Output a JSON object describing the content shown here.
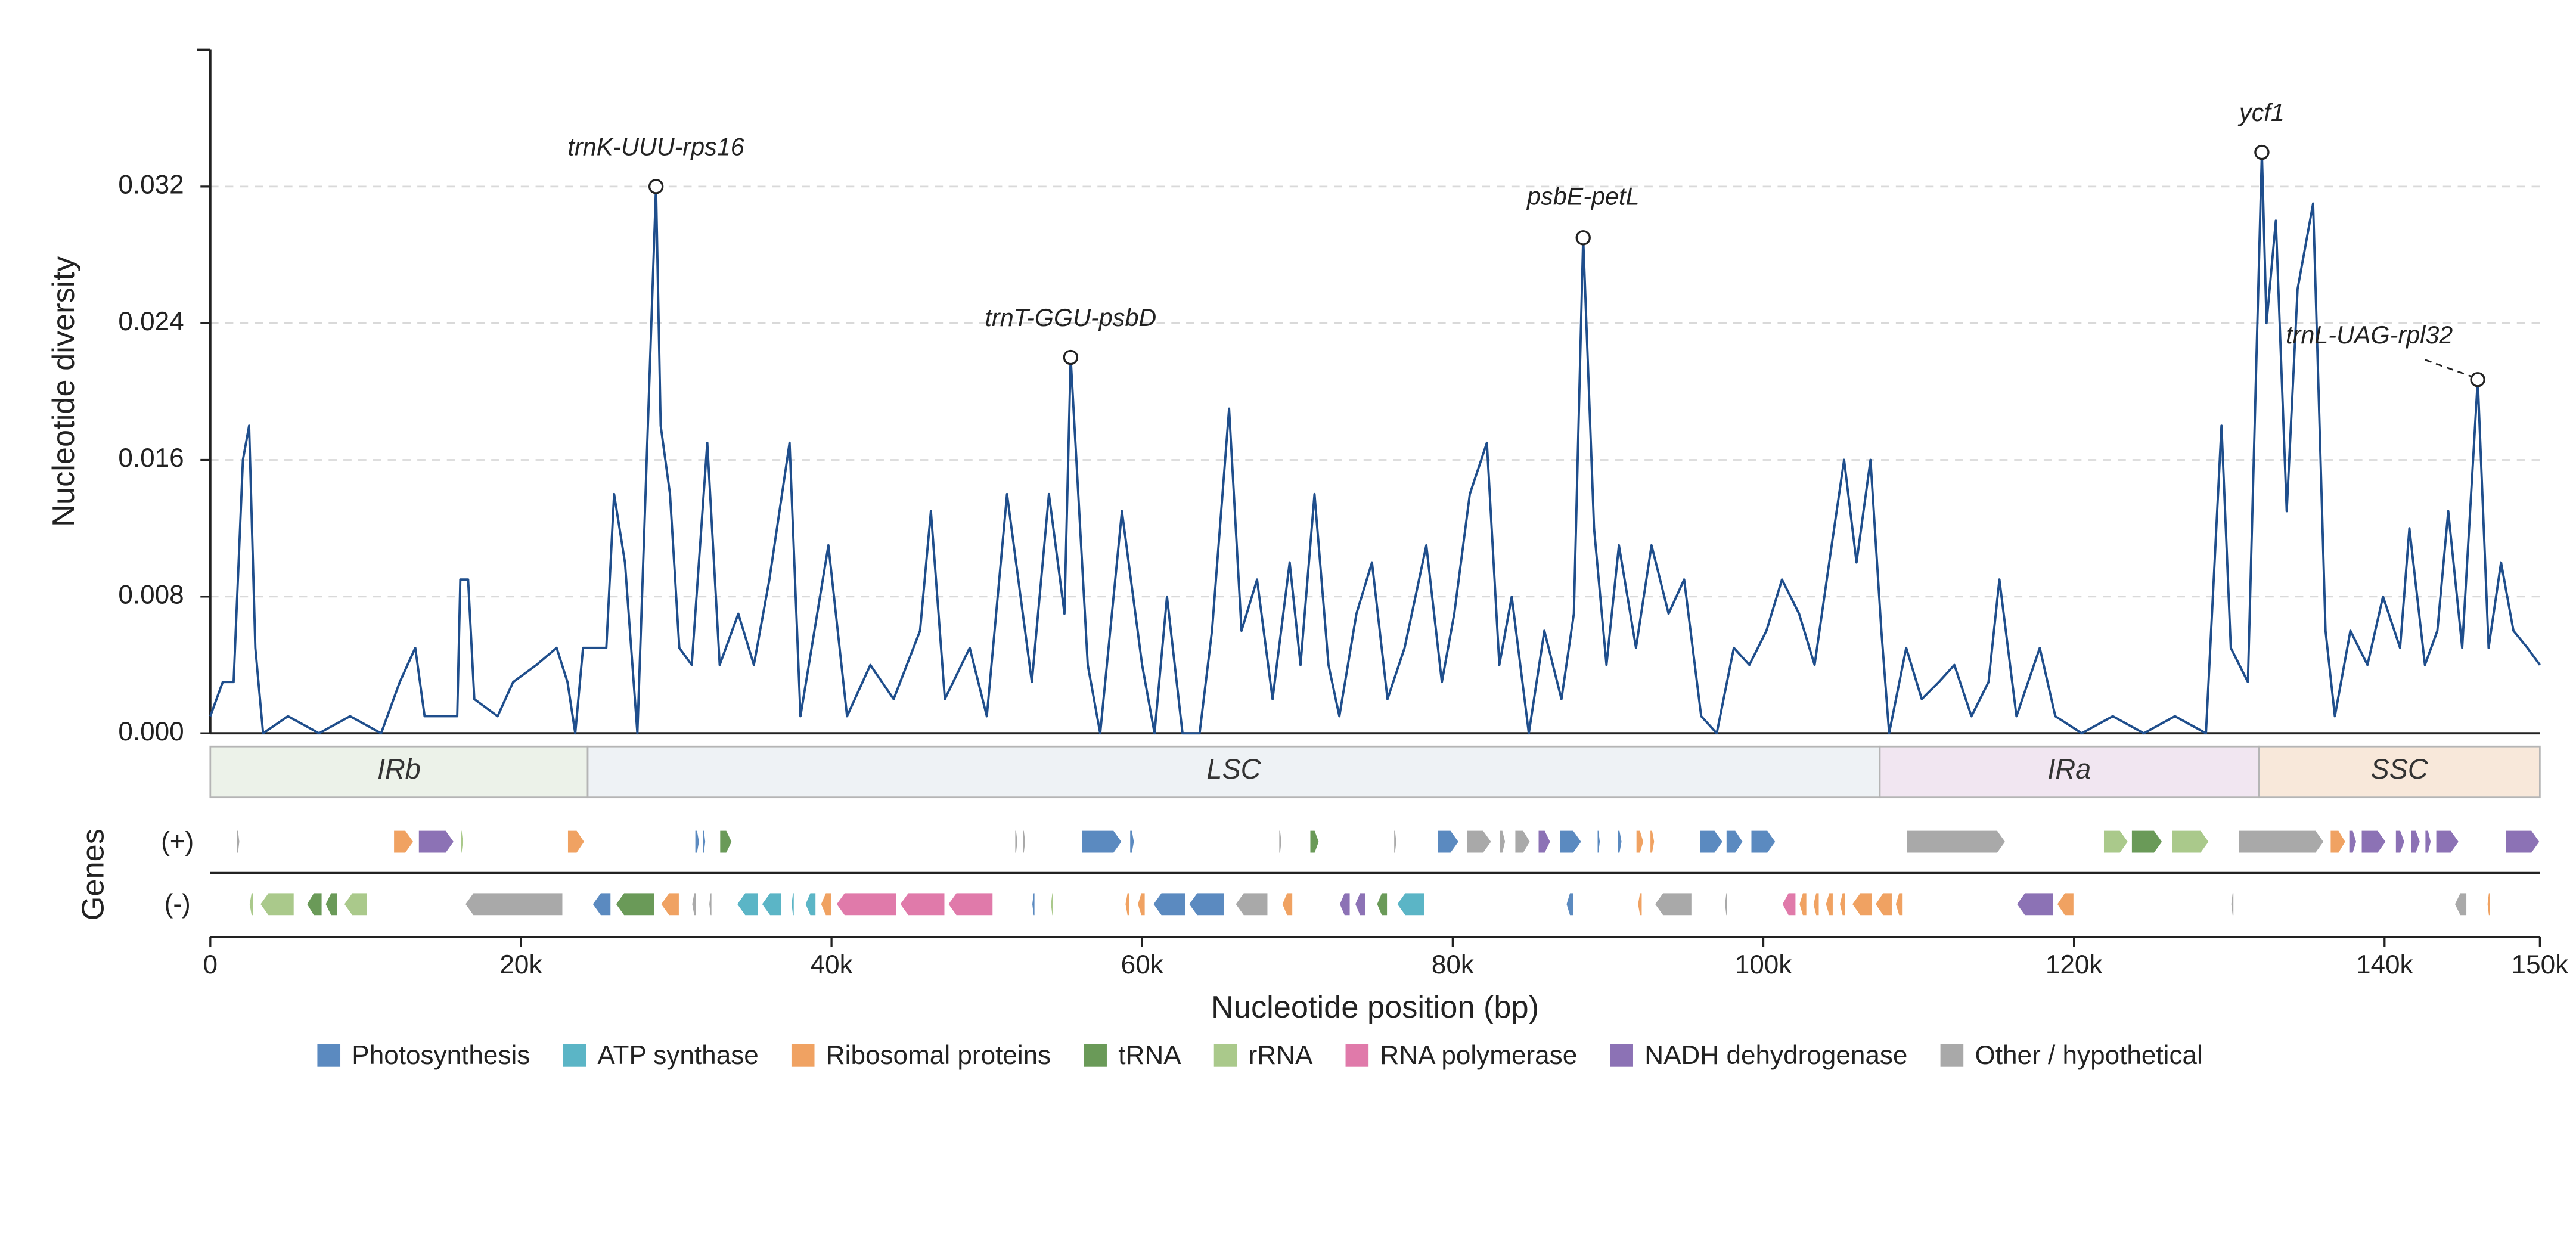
{
  "chart_data": {
    "type": "line",
    "y_label": "Nucleotide diversity",
    "x_label": "Nucleotide position (bp)",
    "genes_label": "Genes",
    "plus_label": "(+)",
    "minus_label": "(-)",
    "color": "#1f4e8c",
    "xlim": [
      0,
      150000
    ],
    "ylim": [
      0,
      0.04
    ],
    "xticks": [
      0,
      {
        "value": 20000,
        "label": "20k"
      },
      {
        "value": 40000,
        "label": "40k"
      },
      {
        "value": 60000,
        "label": "60k"
      },
      {
        "value": 80000,
        "label": "80k"
      },
      {
        "value": 100000,
        "label": "100k"
      },
      {
        "value": 120000,
        "label": "120k"
      },
      {
        "value": 140000,
        "label": "140k"
      },
      {
        "value": 150000,
        "label": "150k"
      }
    ],
    "yticks": [
      {
        "value": 0,
        "label": "0.000"
      },
      {
        "value": 0.008,
        "label": "0.008"
      },
      {
        "value": 0.016,
        "label": "0.016"
      },
      {
        "value": 0.024,
        "label": "0.024"
      },
      {
        "value": 0.032,
        "label": "0.032"
      }
    ],
    "grid": true,
    "x": [
      0,
      800,
      1500,
      2100,
      2500,
      2900,
      3400,
      5000,
      7000,
      9000,
      11000,
      12200,
      13200,
      13800,
      14500,
      15900,
      16100,
      16600,
      17000,
      18500,
      19500,
      21000,
      22300,
      23000,
      23500,
      24000,
      25500,
      26000,
      26700,
      27500,
      28700,
      29000,
      29600,
      30200,
      31000,
      32000,
      32800,
      34000,
      35000,
      36000,
      37300,
      38000,
      39800,
      41000,
      42500,
      44000,
      45700,
      46400,
      47300,
      48900,
      50000,
      51300,
      52900,
      54000,
      55000,
      55400,
      56500,
      57300,
      58700,
      60000,
      60800,
      61600,
      62600,
      63700,
      64500,
      65600,
      66400,
      67400,
      68400,
      69500,
      70200,
      71100,
      72000,
      72700,
      73800,
      74800,
      75800,
      76900,
      78300,
      79300,
      80100,
      81100,
      82200,
      83000,
      83800,
      84900,
      85900,
      87000,
      87800,
      88400,
      89100,
      89900,
      90700,
      91800,
      92800,
      93900,
      94900,
      96000,
      97000,
      98100,
      99100,
      100200,
      101200,
      102300,
      103300,
      104400,
      105200,
      106000,
      106900,
      107600,
      108100,
      109200,
      110200,
      111300,
      112300,
      113400,
      114500,
      115200,
      116300,
      117800,
      118800,
      120500,
      122500,
      124500,
      126500,
      128500,
      129500,
      130100,
      131200,
      132100,
      132400,
      133000,
      133700,
      134400,
      134800,
      135400,
      136200,
      136800,
      137800,
      138900,
      139900,
      141000,
      141600,
      142600,
      143400,
      144100,
      145000,
      146000,
      146700,
      147500,
      148300,
      149200,
      150000
    ],
    "values": [
      0.001,
      0.003,
      0.003,
      0.016,
      0.018,
      0.005,
      0,
      0.001,
      0,
      0.001,
      0,
      0.003,
      0.005,
      0.001,
      0.001,
      0.001,
      0.009,
      0.009,
      0.002,
      0.001,
      0.003,
      0.004,
      0.005,
      0.003,
      0,
      0.005,
      0.005,
      0.014,
      0.01,
      0,
      0.032,
      0.018,
      0.014,
      0.005,
      0.004,
      0.017,
      0.004,
      0.007,
      0.004,
      0.009,
      0.017,
      0.001,
      0.011,
      0.001,
      0.004,
      0.002,
      0.006,
      0.013,
      0.002,
      0.005,
      0.001,
      0.014,
      0.003,
      0.014,
      0.007,
      0.022,
      0.004,
      0,
      0.013,
      0.004,
      0,
      0.008,
      0,
      0,
      0.006,
      0.019,
      0.006,
      0.009,
      0.002,
      0.01,
      0.004,
      0.014,
      0.004,
      0.001,
      0.007,
      0.01,
      0.002,
      0.005,
      0.011,
      0.003,
      0.007,
      0.014,
      0.017,
      0.004,
      0.008,
      0,
      0.006,
      0.002,
      0.007,
      0.029,
      0.012,
      0.004,
      0.011,
      0.005,
      0.011,
      0.007,
      0.009,
      0.001,
      0,
      0.005,
      0.004,
      0.006,
      0.009,
      0.007,
      0.004,
      0.011,
      0.016,
      0.01,
      0.016,
      0.006,
      0,
      0.005,
      0.002,
      0.003,
      0.004,
      0.001,
      0.003,
      0.009,
      0.001,
      0.005,
      0.001,
      0,
      0.001,
      0,
      0.001,
      0,
      0.018,
      0.005,
      0.003,
      0.034,
      0.024,
      0.03,
      0.013,
      0.026,
      0.028,
      0.031,
      0.006,
      0.001,
      0.006,
      0.004,
      0.008,
      0.005,
      0.012,
      0.004,
      0.006,
      0.013,
      0.005,
      0.0207,
      0.005,
      0.01,
      0.006,
      0.005,
      0.004
    ],
    "annotations": [
      {
        "text": "trnK-UUU-rps16",
        "x": 28700,
        "y": 0.032
      },
      {
        "text": "trnT-GGU-psbD",
        "x": 55400,
        "y": 0.022
      },
      {
        "text": "psbE-petL",
        "x": 88400,
        "y": 0.029
      },
      {
        "text": "ycf1",
        "x": 132100,
        "y": 0.034
      },
      {
        "text": "trnL-UAG-rpl32",
        "x": 146000,
        "y": 0.0207
      }
    ],
    "regions": [
      {
        "name": "IRb",
        "start": 0,
        "end": 24300,
        "color": "#ecf2e9"
      },
      {
        "name": "LSC",
        "start": 24300,
        "end": 107500,
        "color": "#eef2f5"
      },
      {
        "name": "IRa",
        "start": 107500,
        "end": 131900,
        "color": "#f1e6f1"
      },
      {
        "name": "SSC",
        "start": 131900,
        "end": 150000,
        "color": "#f8e8da"
      }
    ],
    "gene_categories": [
      {
        "name": "Photosynthesis",
        "color": "#5b8ac0"
      },
      {
        "name": "ATP synthase",
        "color": "#5bb5c6"
      },
      {
        "name": "Ribosomal proteins",
        "color": "#f0a262"
      },
      {
        "name": "tRNA",
        "color": "#6a9a58"
      },
      {
        "name": "rRNA",
        "color": "#aac98b"
      },
      {
        "name": "RNA polymerase",
        "color": "#e07aaa"
      },
      {
        "name": "NADH dehydrogenase",
        "color": "#8c72b5"
      },
      {
        "name": "Other / hypothetical",
        "color": "#a9a9a9"
      }
    ],
    "genes": {
      "plus": [
        [
          1700,
          1900,
          7
        ],
        [
          11800,
          13100,
          2
        ],
        [
          13400,
          15700,
          6
        ],
        [
          16100,
          16300,
          4
        ],
        [
          23000,
          24100,
          2
        ],
        [
          31200,
          31500,
          0
        ],
        [
          31700,
          31900,
          0
        ],
        [
          32800,
          33600,
          3
        ],
        [
          51800,
          52000,
          7
        ],
        [
          52300,
          52500,
          7
        ],
        [
          56100,
          58700,
          0
        ],
        [
          59200,
          59500,
          0
        ],
        [
          68800,
          69000,
          7
        ],
        [
          70800,
          71400,
          3
        ],
        [
          76200,
          76400,
          7
        ],
        [
          79000,
          80400,
          0
        ],
        [
          80900,
          82500,
          7
        ],
        [
          83000,
          83400,
          7
        ],
        [
          84000,
          85000,
          7
        ],
        [
          85500,
          86300,
          6
        ],
        [
          86900,
          88300,
          0
        ],
        [
          89300,
          89500,
          0
        ],
        [
          90600,
          90900,
          0
        ],
        [
          91800,
          92300,
          2
        ],
        [
          92700,
          93000,
          2
        ],
        [
          95900,
          97400,
          0
        ],
        [
          97600,
          98700,
          0
        ],
        [
          99200,
          100800,
          0
        ],
        [
          109200,
          115600,
          7
        ],
        [
          121900,
          123500,
          4
        ],
        [
          123700,
          125700,
          3
        ],
        [
          126300,
          128700,
          4
        ],
        [
          130600,
          136100,
          7
        ],
        [
          136500,
          137500,
          2
        ],
        [
          137700,
          138200,
          6
        ],
        [
          138500,
          140100,
          6
        ],
        [
          140700,
          141300,
          6
        ],
        [
          141700,
          142300,
          6
        ],
        [
          142600,
          143000,
          6
        ],
        [
          143300,
          144800,
          6
        ],
        [
          147800,
          150000,
          6
        ]
      ],
      "minus": [
        [
          2500,
          2800,
          4
        ],
        [
          3200,
          5400,
          4
        ],
        [
          6200,
          7200,
          3
        ],
        [
          7400,
          8200,
          3
        ],
        [
          8600,
          10100,
          4
        ],
        [
          16400,
          22700,
          7
        ],
        [
          24600,
          25800,
          0
        ],
        [
          26100,
          28600,
          3
        ],
        [
          29000,
          30200,
          2
        ],
        [
          31000,
          31300,
          7
        ],
        [
          32100,
          32300,
          7
        ],
        [
          33900,
          35300,
          1
        ],
        [
          35500,
          36800,
          1
        ],
        [
          37400,
          37600,
          1
        ],
        [
          38300,
          39000,
          1
        ],
        [
          39300,
          40000,
          2
        ],
        [
          40300,
          44200,
          5
        ],
        [
          44400,
          47300,
          5
        ],
        [
          47500,
          50400,
          5
        ],
        [
          52900,
          53100,
          0
        ],
        [
          54100,
          54300,
          4
        ],
        [
          58900,
          59200,
          2
        ],
        [
          59700,
          60200,
          2
        ],
        [
          60700,
          62800,
          0
        ],
        [
          63000,
          65300,
          0
        ],
        [
          66000,
          68100,
          7
        ],
        [
          69000,
          69700,
          2
        ],
        [
          72700,
          73400,
          6
        ],
        [
          73700,
          74400,
          6
        ],
        [
          75100,
          75800,
          3
        ],
        [
          76400,
          78200,
          1
        ],
        [
          87300,
          87800,
          0
        ],
        [
          91900,
          92200,
          2
        ],
        [
          93000,
          95400,
          7
        ],
        [
          97500,
          97700,
          7
        ],
        [
          101200,
          102100,
          5
        ],
        [
          102300,
          102800,
          2
        ],
        [
          103200,
          103600,
          2
        ],
        [
          104000,
          104500,
          2
        ],
        [
          104900,
          105300,
          2
        ],
        [
          105700,
          107000,
          2
        ],
        [
          107200,
          108300,
          2
        ],
        [
          108500,
          109000,
          2
        ],
        [
          116300,
          118700,
          6
        ],
        [
          118900,
          120000,
          2
        ],
        [
          130100,
          130300,
          7
        ],
        [
          144500,
          145300,
          7
        ],
        [
          146600,
          146800,
          2
        ]
      ]
    }
  }
}
